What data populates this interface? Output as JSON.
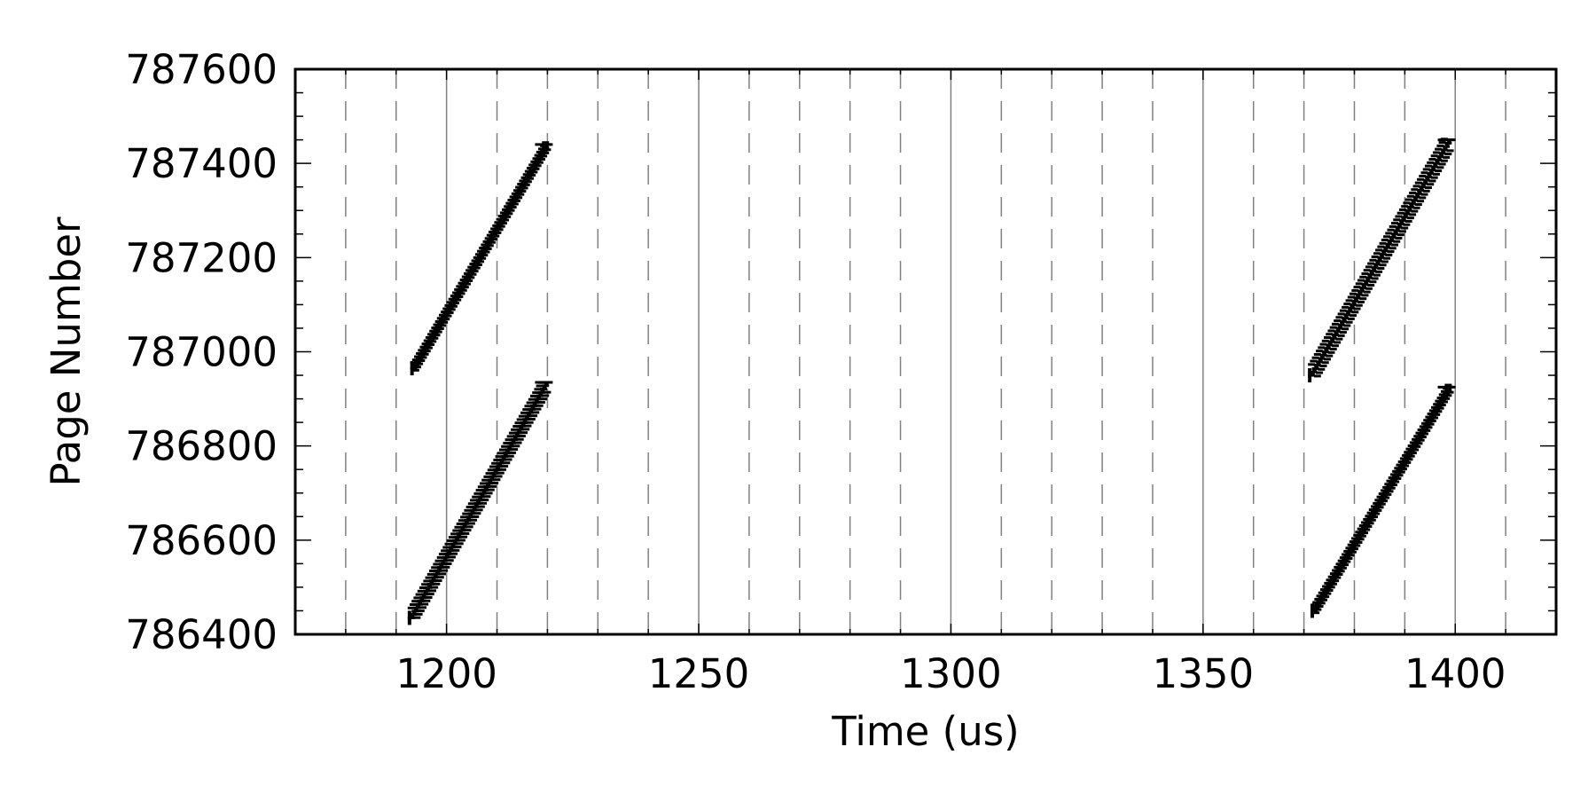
{
  "chart_data": {
    "type": "scatter",
    "title": "",
    "xlabel": "Time (us)",
    "ylabel": "Page Number",
    "xlim": [
      1170,
      1420
    ],
    "ylim": [
      786400,
      787600
    ],
    "x_ticks": [
      1200,
      1250,
      1300,
      1350,
      1400
    ],
    "y_ticks": [
      786400,
      786600,
      786800,
      787000,
      787200,
      787400,
      787600
    ],
    "x_tick_labels": [
      "1200",
      "1250",
      "1300",
      "1350",
      "1400"
    ],
    "y_tick_labels": [
      "786400",
      "786600",
      "786800",
      "787000",
      "787200",
      "787400",
      "787600"
    ],
    "x_minor_step": 10,
    "y_minor_step": 50,
    "grid": {
      "major_x": "solid",
      "minor_x": "dashed",
      "y": "off"
    },
    "marker": "horizontal tick",
    "color": "#000000",
    "series": [
      {
        "x_start": 1193.5,
        "x_end": 1220.0,
        "y_start": 786965,
        "y_end": 787440,
        "band_width": 22
      },
      {
        "x_start": 1193.0,
        "x_end": 1220.0,
        "y_start": 786435,
        "y_end": 786935,
        "band_width": 42
      },
      {
        "x_start": 1371.5,
        "x_end": 1399.0,
        "y_start": 786950,
        "y_end": 787450,
        "band_width": 46
      },
      {
        "x_start": 1372.0,
        "x_end": 1399.0,
        "y_start": 786450,
        "y_end": 786925,
        "band_width": 22
      }
    ]
  }
}
